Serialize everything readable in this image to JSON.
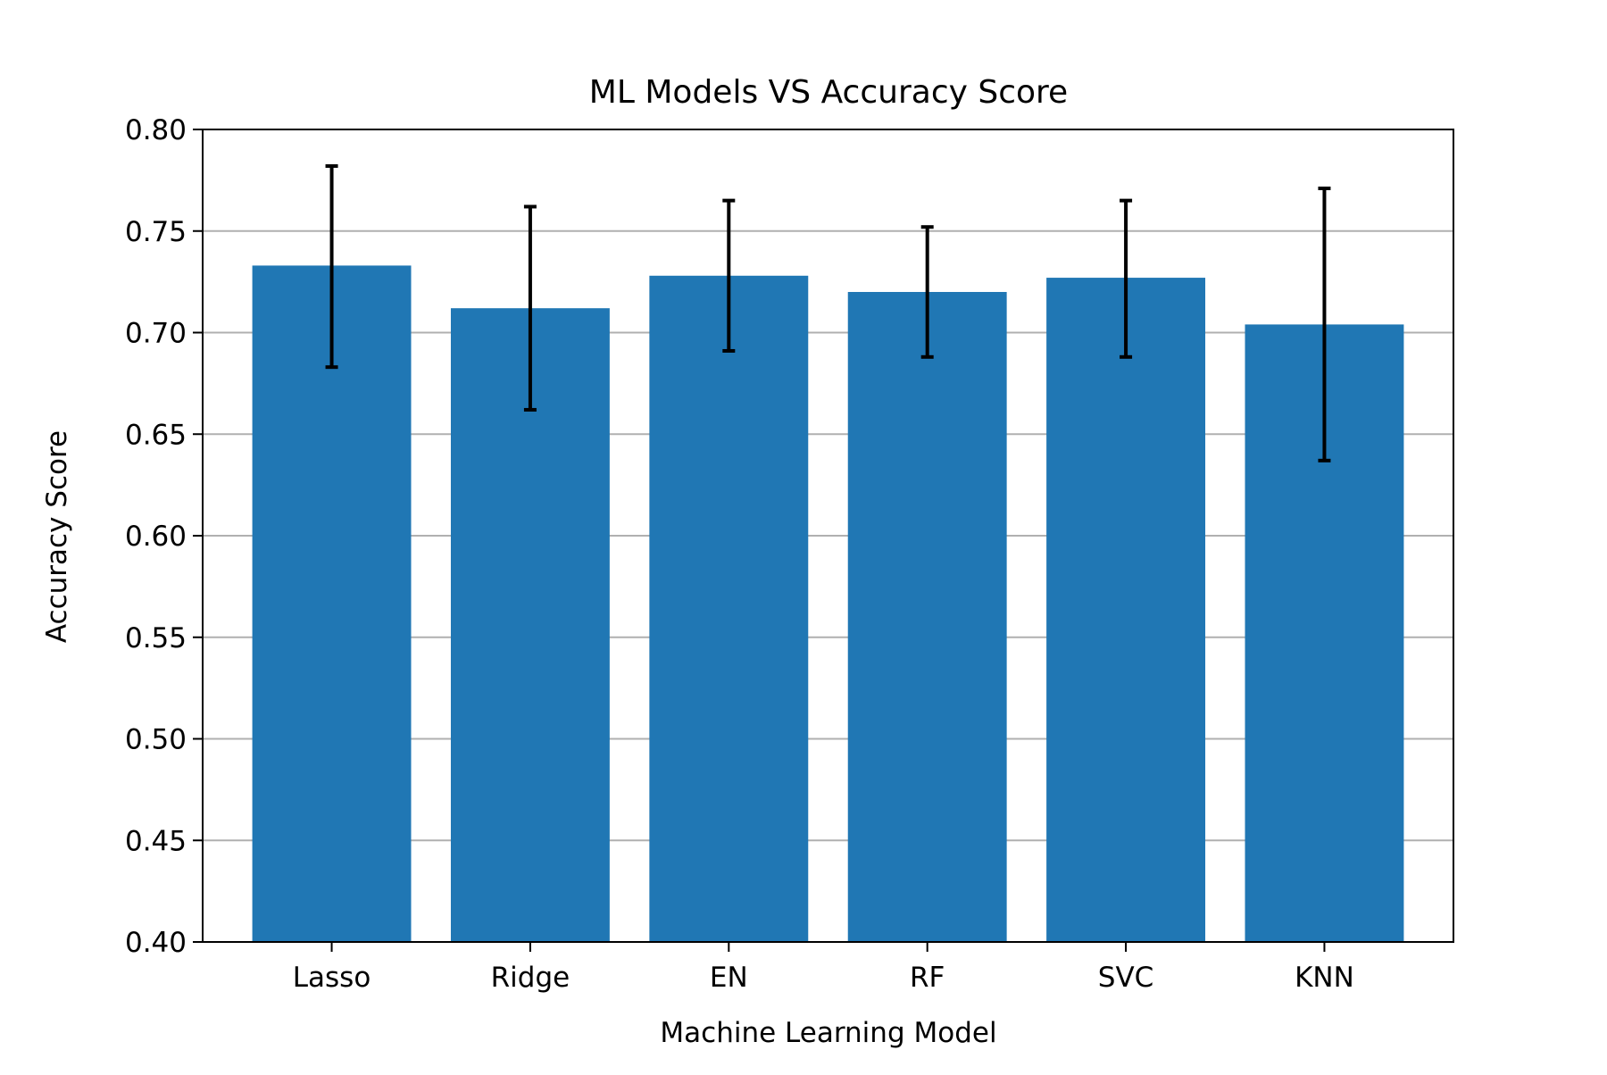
{
  "chart_data": {
    "type": "bar",
    "title": "ML Models VS Accuracy Score",
    "xlabel": "Machine Learning Model",
    "ylabel": "Accuracy Score",
    "categories": [
      "Lasso",
      "Ridge",
      "EN",
      "RF",
      "SVC",
      "KNN"
    ],
    "values": [
      0.733,
      0.712,
      0.728,
      0.72,
      0.727,
      0.704
    ],
    "error_bars": [
      [
        0.683,
        0.782
      ],
      [
        0.662,
        0.762
      ],
      [
        0.691,
        0.765
      ],
      [
        0.688,
        0.752
      ],
      [
        0.688,
        0.765
      ],
      [
        0.637,
        0.771
      ]
    ],
    "ylim": [
      0.4,
      0.8
    ],
    "yticks": [
      "0.40",
      "0.45",
      "0.50",
      "0.55",
      "0.60",
      "0.65",
      "0.70",
      "0.75",
      "0.80"
    ],
    "grid": "y",
    "colors": {
      "bar": "#2077b4",
      "error": "#000000",
      "grid": "#b0b0b0"
    }
  }
}
